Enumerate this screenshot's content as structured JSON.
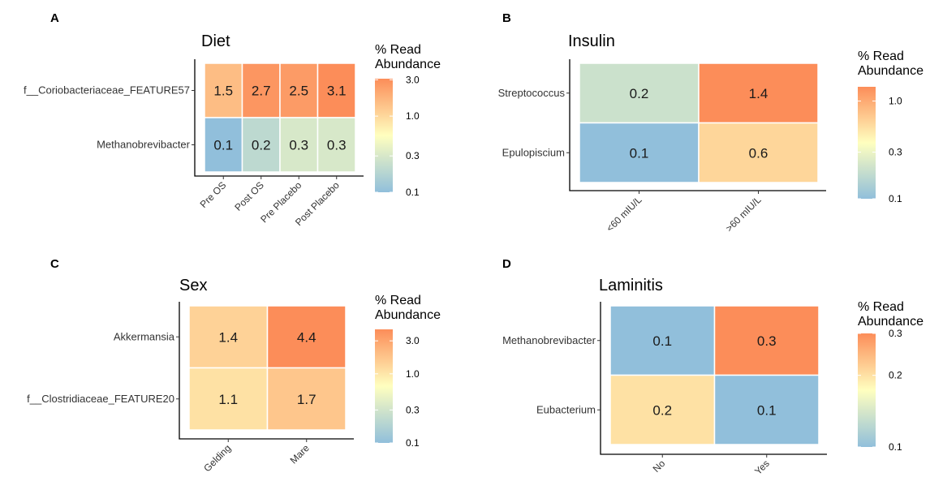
{
  "legend_title_line1": "% Read",
  "legend_title_line2": "Abundance",
  "colors": {
    "low": "#91bfdb",
    "mid": "#ffffbf",
    "high": "#fc8d59"
  },
  "chart_data": [
    {
      "type": "heatmap",
      "panel": "A",
      "title": "Diet",
      "xlabel": "",
      "ylabel": "",
      "x": [
        "Pre OS",
        "Post OS",
        "Pre Placebo",
        "Post Placebo"
      ],
      "y": [
        "f__Coriobacteriaceae_FEATURE57",
        "Methanobrevibacter"
      ],
      "values": [
        [
          1.5,
          2.7,
          2.5,
          3.1
        ],
        [
          0.1,
          0.2,
          0.3,
          0.3
        ]
      ],
      "legend_ticks": [
        "3.0",
        "1.0",
        "0.3",
        "0.1"
      ],
      "legend_tick_values": [
        3.0,
        1.0,
        0.3,
        0.1
      ],
      "scale": "log",
      "range": [
        0.1,
        3.1
      ]
    },
    {
      "type": "heatmap",
      "panel": "B",
      "title": "Insulin",
      "xlabel": "",
      "ylabel": "",
      "x": [
        "<60 mIU/L",
        ">60 mIU/L"
      ],
      "y": [
        "Streptococcus",
        "Epulopiscium"
      ],
      "values": [
        [
          0.2,
          1.4
        ],
        [
          0.1,
          0.6
        ]
      ],
      "legend_ticks": [
        "1.0",
        "0.3",
        "0.1"
      ],
      "legend_tick_values": [
        1.0,
        0.3,
        0.1
      ],
      "scale": "log",
      "range": [
        0.1,
        1.4
      ]
    },
    {
      "type": "heatmap",
      "panel": "C",
      "title": "Sex",
      "xlabel": "",
      "ylabel": "",
      "x": [
        "Gelding",
        "Mare"
      ],
      "y": [
        "Akkermansia",
        "f__Clostridiaceae_FEATURE20"
      ],
      "values": [
        [
          1.4,
          4.4
        ],
        [
          1.1,
          1.7
        ]
      ],
      "legend_ticks": [
        "3.0",
        "1.0",
        "0.3",
        "0.1"
      ],
      "legend_tick_values": [
        3.0,
        1.0,
        0.3,
        0.1
      ],
      "scale": "log",
      "range": [
        0.1,
        4.4
      ]
    },
    {
      "type": "heatmap",
      "panel": "D",
      "title": "Laminitis",
      "xlabel": "",
      "ylabel": "",
      "x": [
        "No",
        "Yes"
      ],
      "y": [
        "Methanobrevibacter",
        "Eubacterium"
      ],
      "values": [
        [
          0.1,
          0.3
        ],
        [
          0.2,
          0.1
        ]
      ],
      "legend_ticks": [
        "0.3",
        "0.2",
        "0.1"
      ],
      "legend_tick_values": [
        0.3,
        0.2,
        0.1
      ],
      "scale": "log",
      "range": [
        0.1,
        0.3
      ]
    }
  ]
}
